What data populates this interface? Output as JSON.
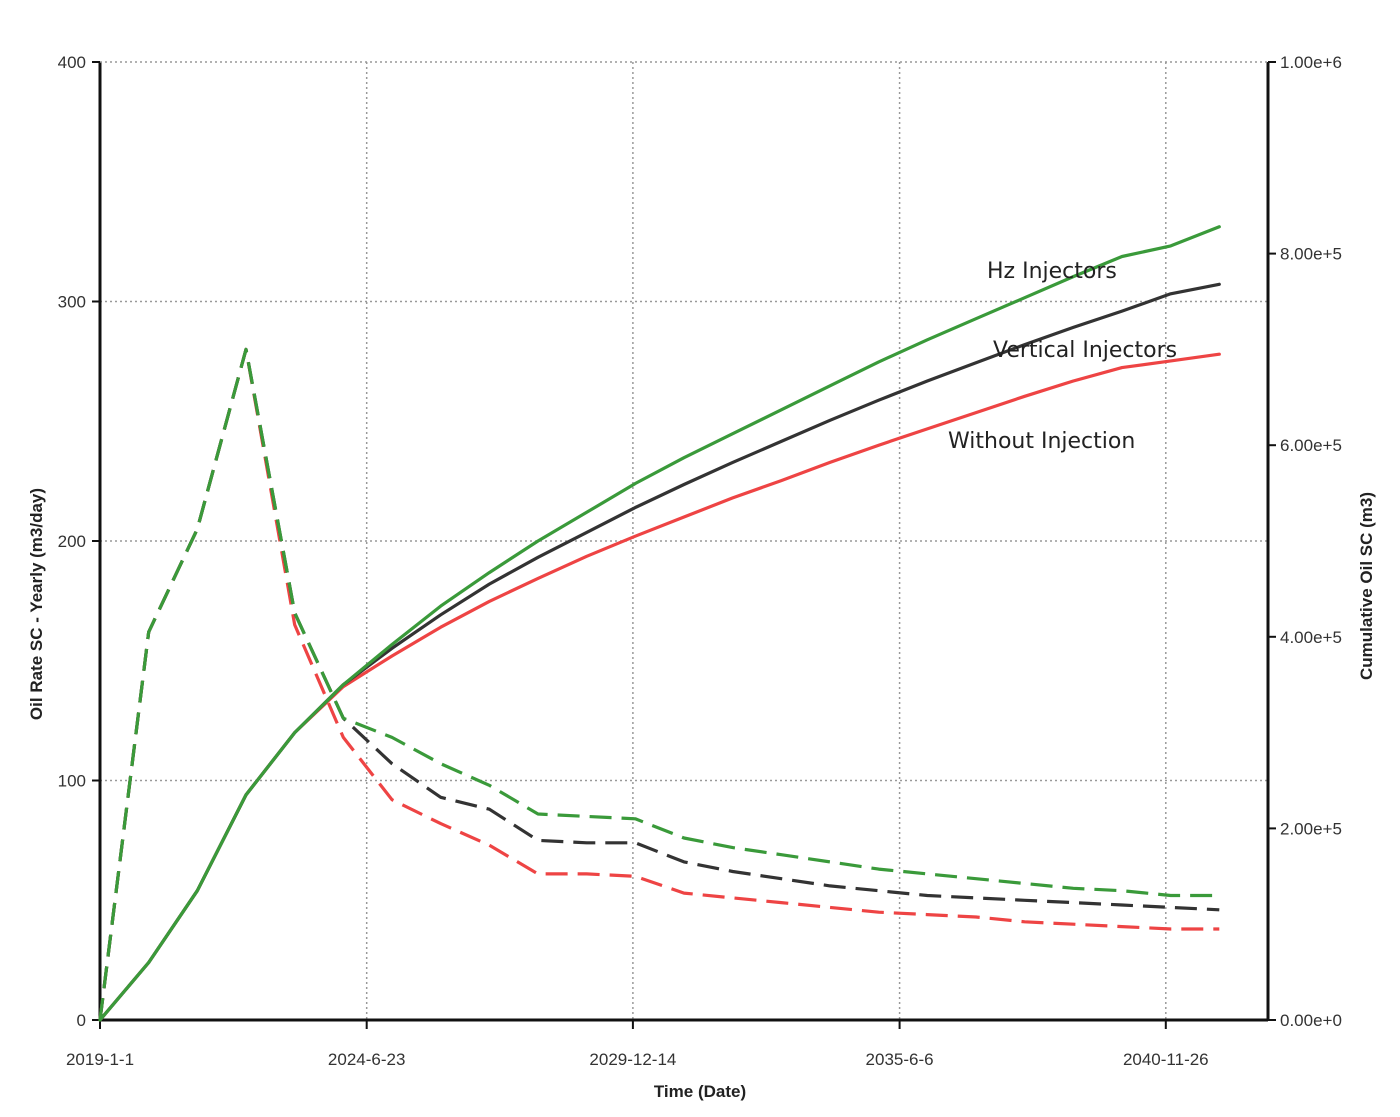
{
  "chart_data": {
    "type": "line",
    "xlabel": "Time (Date)",
    "ylabel_left": "Oil Rate SC - Yearly (m3/day)",
    "ylabel_right": "Cumulative Oil SC (m3)",
    "x_tick_labels": [
      "2019-1-1",
      "2024-6-23",
      "2029-12-14",
      "2035-6-6",
      "2040-11-26"
    ],
    "x_tick_years": [
      2019.0,
      2024.48,
      2029.95,
      2035.43,
      2040.9
    ],
    "xlim": [
      2019.0,
      2043.0
    ],
    "ylim_left": [
      0,
      400
    ],
    "ylim_right": [
      0,
      1000000
    ],
    "left_ticks": [
      0,
      100,
      200,
      300,
      400
    ],
    "left_tick_labels": [
      "0",
      "100",
      "200",
      "300",
      "400"
    ],
    "right_ticks": [
      0,
      200000,
      400000,
      600000,
      800000,
      1000000
    ],
    "right_tick_labels": [
      "0.00e+0",
      "2.00e+5",
      "4.00e+5",
      "6.00e+5",
      "8.00e+5",
      "1.00e+6"
    ],
    "grid": true,
    "series": [
      {
        "name": "Hz Injectors",
        "color": "#3a9a3a",
        "rate_years": [
          2019.0,
          2020.0,
          2021.0,
          2022.0,
          2023.0,
          2024.0,
          2025.0,
          2026.0,
          2027.0,
          2028.0,
          2029.0,
          2030.0,
          2031.0,
          2032.0,
          2033.0,
          2034.0,
          2035.0,
          2036.0,
          2037.0,
          2038.0,
          2039.0,
          2040.0,
          2041.0,
          2042.0
        ],
        "rate": [
          0,
          162,
          205,
          280,
          170,
          126,
          118,
          107,
          98,
          86,
          85,
          84,
          76,
          72,
          69,
          66,
          63,
          61,
          59,
          57,
          55,
          54,
          52,
          52
        ],
        "cum_years": [
          2019.0,
          2020.0,
          2021.0,
          2022.0,
          2023.0,
          2024.0,
          2025.0,
          2026.0,
          2027.0,
          2028.0,
          2029.0,
          2030.0,
          2031.0,
          2032.0,
          2033.0,
          2034.0,
          2035.0,
          2036.0,
          2037.0,
          2038.0,
          2039.0,
          2040.0,
          2041.0,
          2042.0
        ],
        "cum": [
          0,
          60000,
          135000,
          235000,
          300000,
          350000,
          392000,
          432000,
          467000,
          500000,
          530000,
          560000,
          587000,
          612000,
          637000,
          662000,
          687000,
          710000,
          732000,
          754000,
          776000,
          797000,
          808000,
          828000
        ]
      },
      {
        "name": "Vertical Injectors",
        "color": "#333333",
        "rate_years": [
          2019.0,
          2020.0,
          2021.0,
          2022.0,
          2023.0,
          2024.0,
          2025.0,
          2026.0,
          2027.0,
          2028.0,
          2029.0,
          2030.0,
          2031.0,
          2032.0,
          2033.0,
          2034.0,
          2035.0,
          2036.0,
          2037.0,
          2038.0,
          2039.0,
          2040.0,
          2041.0,
          2042.0
        ],
        "rate": [
          0,
          162,
          205,
          280,
          170,
          126,
          107,
          93,
          88,
          75,
          74,
          74,
          66,
          62,
          59,
          56,
          54,
          52,
          51,
          50,
          49,
          48,
          47,
          46
        ],
        "cum_years": [
          2019.0,
          2020.0,
          2021.0,
          2022.0,
          2023.0,
          2024.0,
          2025.0,
          2026.0,
          2027.0,
          2028.0,
          2029.0,
          2030.0,
          2031.0,
          2032.0,
          2033.0,
          2034.0,
          2035.0,
          2036.0,
          2037.0,
          2038.0,
          2039.0,
          2040.0,
          2041.0,
          2042.0
        ],
        "cum": [
          0,
          60000,
          135000,
          235000,
          300000,
          350000,
          388000,
          423000,
          455000,
          483000,
          509000,
          535000,
          559000,
          582000,
          604000,
          626000,
          647000,
          667000,
          686000,
          705000,
          723000,
          740000,
          758000,
          768000
        ]
      },
      {
        "name": "Without Injection",
        "color": "#ee4444",
        "rate_years": [
          2019.0,
          2020.0,
          2021.0,
          2022.0,
          2023.0,
          2024.0,
          2025.0,
          2026.0,
          2027.0,
          2028.0,
          2029.0,
          2030.0,
          2031.0,
          2032.0,
          2033.0,
          2034.0,
          2035.0,
          2036.0,
          2037.0,
          2038.0,
          2039.0,
          2040.0,
          2041.0,
          2042.0
        ],
        "rate": [
          0,
          162,
          205,
          280,
          165,
          118,
          92,
          82,
          73,
          61,
          61,
          60,
          53,
          51,
          49,
          47,
          45,
          44,
          43,
          41,
          40,
          39,
          38,
          38
        ],
        "cum_years": [
          2019.0,
          2020.0,
          2021.0,
          2022.0,
          2023.0,
          2024.0,
          2025.0,
          2026.0,
          2027.0,
          2028.0,
          2029.0,
          2030.0,
          2031.0,
          2032.0,
          2033.0,
          2034.0,
          2035.0,
          2036.0,
          2037.0,
          2038.0,
          2039.0,
          2040.0,
          2041.0,
          2042.0
        ],
        "cum": [
          0,
          60000,
          135000,
          235000,
          300000,
          348000,
          380000,
          410000,
          437000,
          461000,
          484000,
          505000,
          525000,
          545000,
          563000,
          582000,
          600000,
          617000,
          634000,
          651000,
          667000,
          681000,
          688000,
          695000
        ]
      }
    ]
  }
}
